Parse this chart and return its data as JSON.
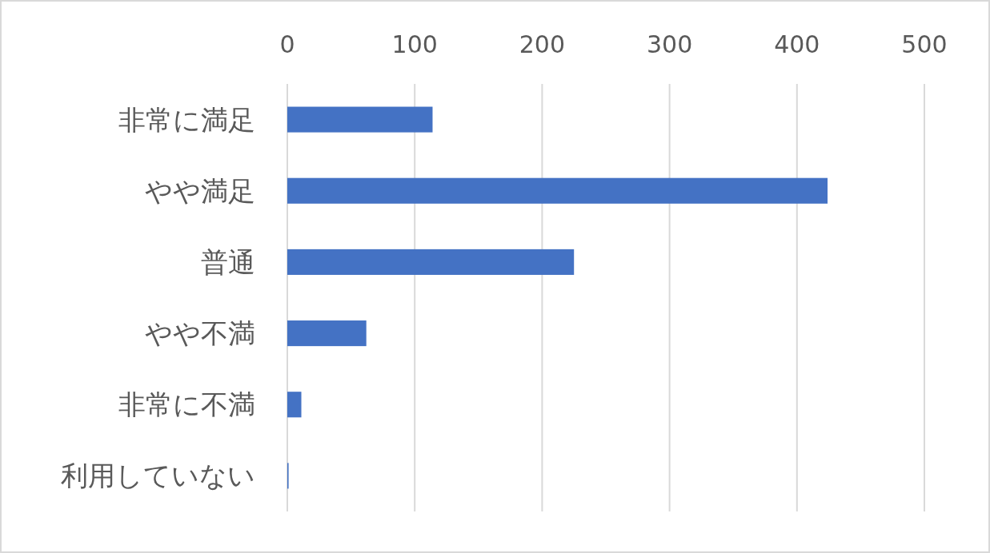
{
  "chart_data": {
    "type": "bar",
    "orientation": "horizontal",
    "categories": [
      "非常に満足",
      "やや満足",
      "普通",
      "やや不満",
      "非常に不満",
      "利用していない"
    ],
    "values": [
      114,
      424,
      225,
      62,
      11,
      1
    ],
    "color": "#4472c4",
    "xlim": [
      0,
      500
    ],
    "xticks": [
      0,
      100,
      200,
      300,
      400,
      500
    ],
    "grid": "x"
  }
}
